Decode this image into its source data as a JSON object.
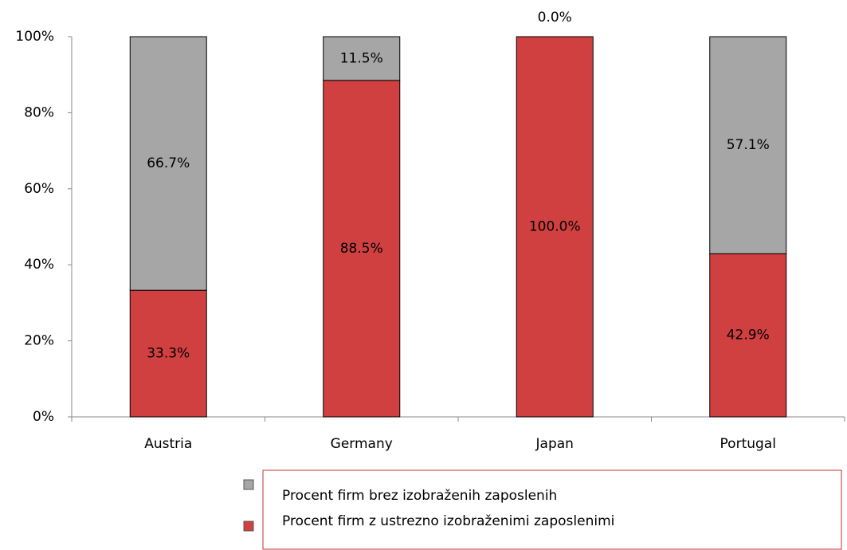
{
  "chart_data": {
    "type": "stacked_bar",
    "categories": [
      "Austria",
      "Germany",
      "Japan",
      "Portugal"
    ],
    "series": [
      {
        "name": "Procent firm z ustrezno izobraženimi zaposlenimi",
        "color": "#d04040",
        "values": [
          33.3,
          88.5,
          100.0,
          42.9
        ],
        "value_labels": [
          "33.3%",
          "88.5%",
          "100.0%",
          "42.9%"
        ]
      },
      {
        "name": "Procent firm brez izobraženih zaposlenih",
        "color": "#a6a6a6",
        "values": [
          66.7,
          11.5,
          0.0,
          57.1
        ],
        "value_labels": [
          "66.7%",
          "11.5%",
          "0.0%",
          "57.1%"
        ]
      }
    ],
    "ylim": [
      0,
      100
    ],
    "yticks": [
      {
        "value": 0,
        "label": "0%"
      },
      {
        "value": 20,
        "label": "20%"
      },
      {
        "value": 40,
        "label": "40%"
      },
      {
        "value": 60,
        "label": "60%"
      },
      {
        "value": 80,
        "label": "80%"
      },
      {
        "value": 100,
        "label": "100%"
      }
    ],
    "grid": false
  }
}
